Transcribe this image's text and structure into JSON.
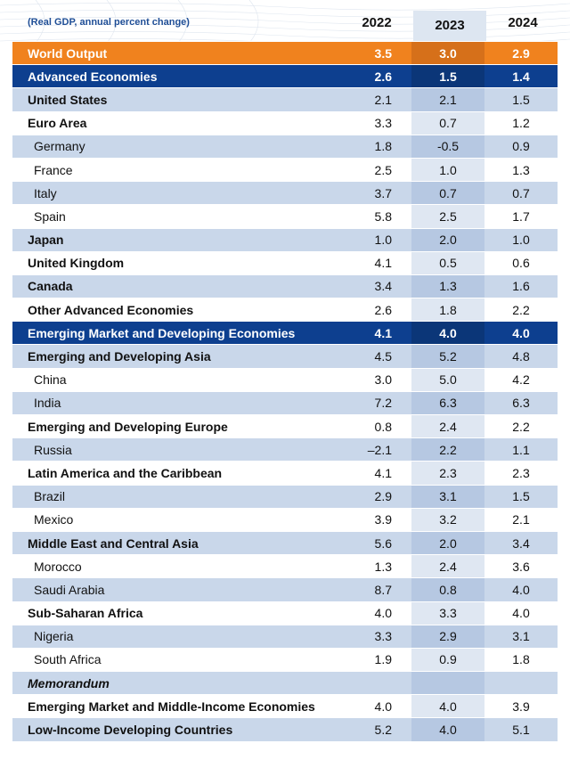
{
  "header": {
    "subtitle": "(Real GDP, annual percent change)",
    "years": [
      "2022",
      "2023",
      "2024"
    ]
  },
  "rows": [
    {
      "label": "World Output",
      "v": [
        "3.5",
        "3.0",
        "2.9"
      ],
      "style": "orange",
      "indent": false
    },
    {
      "label": "Advanced Economies",
      "v": [
        "2.6",
        "1.5",
        "1.4"
      ],
      "style": "navy",
      "indent": false
    },
    {
      "label": "United States",
      "v": [
        "2.1",
        "2.1",
        "1.5"
      ],
      "style": "shade",
      "indent": false
    },
    {
      "label": "Euro Area",
      "v": [
        "3.3",
        "0.7",
        "1.2"
      ],
      "style": "light",
      "indent": false
    },
    {
      "label": "Germany",
      "v": [
        "1.8",
        "-0.5",
        "0.9"
      ],
      "style": "shade",
      "indent": true
    },
    {
      "label": "France",
      "v": [
        "2.5",
        "1.0",
        "1.3"
      ],
      "style": "light",
      "indent": true
    },
    {
      "label": "Italy",
      "v": [
        "3.7",
        "0.7",
        "0.7"
      ],
      "style": "shade",
      "indent": true
    },
    {
      "label": "Spain",
      "v": [
        "5.8",
        "2.5",
        "1.7"
      ],
      "style": "light",
      "indent": true
    },
    {
      "label": "Japan",
      "v": [
        "1.0",
        "2.0",
        "1.0"
      ],
      "style": "shade",
      "indent": false
    },
    {
      "label": "United Kingdom",
      "v": [
        "4.1",
        "0.5",
        "0.6"
      ],
      "style": "light",
      "indent": false
    },
    {
      "label": "Canada",
      "v": [
        "3.4",
        "1.3",
        "1.6"
      ],
      "style": "shade",
      "indent": false
    },
    {
      "label": "Other Advanced Economies",
      "v": [
        "2.6",
        "1.8",
        "2.2"
      ],
      "style": "light",
      "indent": false
    },
    {
      "label": "Emerging Market and Developing Economies",
      "v": [
        "4.1",
        "4.0",
        "4.0"
      ],
      "style": "navy",
      "indent": false
    },
    {
      "label": "Emerging and Developing Asia",
      "v": [
        "4.5",
        "5.2",
        "4.8"
      ],
      "style": "shade",
      "indent": false
    },
    {
      "label": "China",
      "v": [
        "3.0",
        "5.0",
        "4.2"
      ],
      "style": "light",
      "indent": true
    },
    {
      "label": "India",
      "v": [
        "7.2",
        "6.3",
        "6.3"
      ],
      "style": "shade",
      "indent": true
    },
    {
      "label": "Emerging and Developing Europe",
      "v": [
        "0.8",
        "2.4",
        "2.2"
      ],
      "style": "light",
      "indent": false
    },
    {
      "label": "Russia",
      "v": [
        "–2.1",
        "2.2",
        "1.1"
      ],
      "style": "shade",
      "indent": true
    },
    {
      "label": "Latin America and the Caribbean",
      "v": [
        "4.1",
        "2.3",
        "2.3"
      ],
      "style": "light",
      "indent": false
    },
    {
      "label": "Brazil",
      "v": [
        "2.9",
        "3.1",
        "1.5"
      ],
      "style": "shade",
      "indent": true
    },
    {
      "label": "Mexico",
      "v": [
        "3.9",
        "3.2",
        "2.1"
      ],
      "style": "light",
      "indent": true
    },
    {
      "label": "Middle East and Central Asia",
      "v": [
        "5.6",
        "2.0",
        "3.4"
      ],
      "style": "shade",
      "indent": false
    },
    {
      "label": "Morocco",
      "v": [
        "1.3",
        "2.4",
        "3.6"
      ],
      "style": "light",
      "indent": true
    },
    {
      "label": "Saudi Arabia",
      "v": [
        "8.7",
        "0.8",
        "4.0"
      ],
      "style": "shade",
      "indent": true
    },
    {
      "label": "Sub-Saharan Africa",
      "v": [
        "4.0",
        "3.3",
        "4.0"
      ],
      "style": "light",
      "indent": false
    },
    {
      "label": "Nigeria",
      "v": [
        "3.3",
        "2.9",
        "3.1"
      ],
      "style": "shade",
      "indent": true
    },
    {
      "label": "South Africa",
      "v": [
        "1.9",
        "0.9",
        "1.8"
      ],
      "style": "light",
      "indent": true
    },
    {
      "label": "Memorandum",
      "v": [
        "",
        "",
        ""
      ],
      "style": "shade",
      "indent": false,
      "memo": true
    },
    {
      "label": "Emerging Market and Middle-Income Economies",
      "v": [
        "4.0",
        "4.0",
        "3.9"
      ],
      "style": "light",
      "indent": false
    },
    {
      "label": "Low-Income Developing Countries",
      "v": [
        "5.2",
        "4.0",
        "5.1"
      ],
      "style": "shade",
      "indent": false
    }
  ],
  "colors": {
    "orange": "#f0821e",
    "navy": "#0d3f8f",
    "subtitle": "#1f4e96"
  }
}
